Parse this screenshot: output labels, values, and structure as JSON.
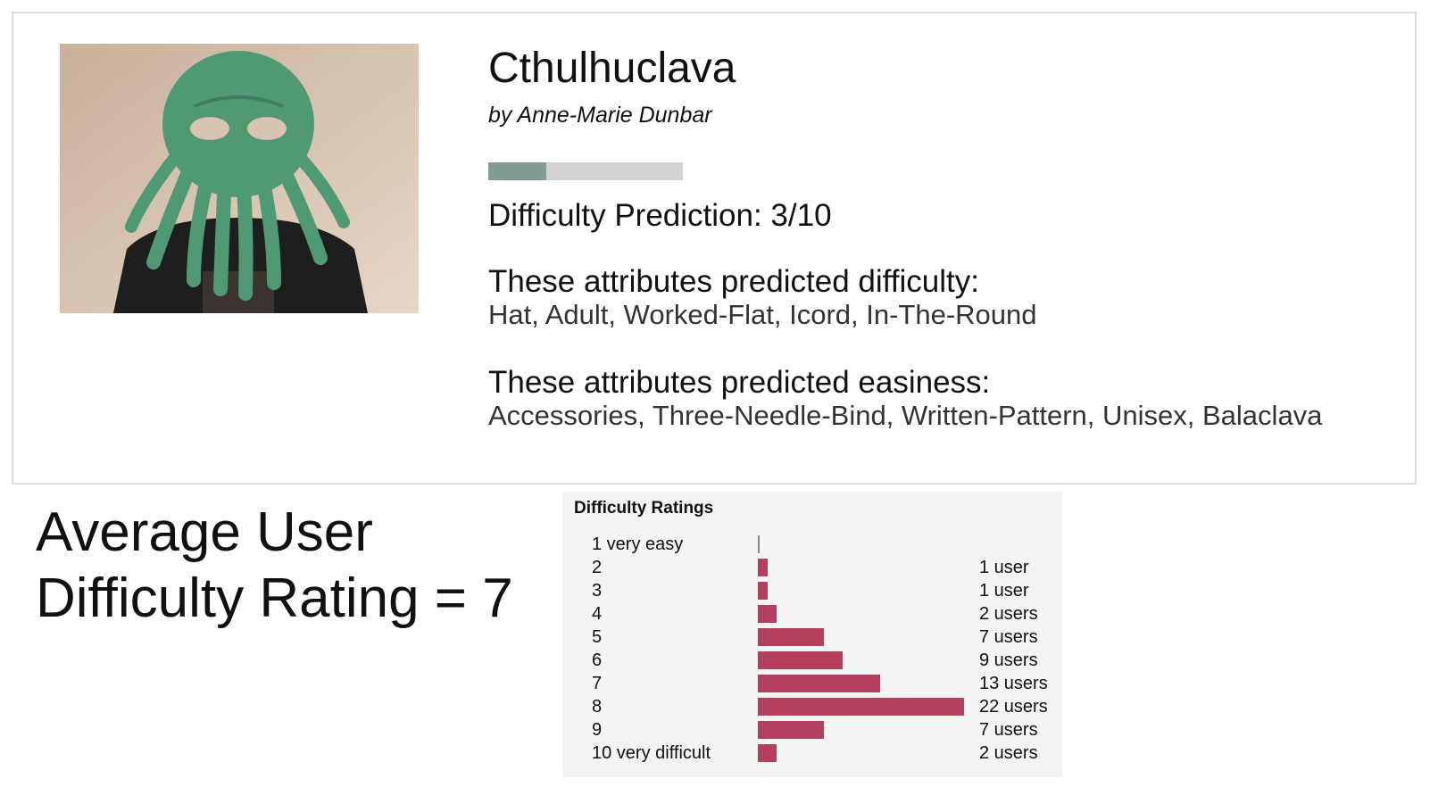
{
  "pattern": {
    "title": "Cthulhuclava",
    "author": "by Anne-Marie Dunbar",
    "photo_icon": "pattern-photo-icon",
    "prediction_text": "Difficulty Prediction: 3/10",
    "prediction_score": 3,
    "prediction_max": 10,
    "difficulty_heading": "These attributes predicted difficulty:",
    "difficulty_attributes": "Hat, Adult, Worked-Flat, Icord, In-The-Round",
    "easiness_heading": "These attributes predicted easiness:",
    "easiness_attributes": "Accessories, Three-Needle-Bind, Written-Pattern, Unisex, Balaclava"
  },
  "summary": {
    "line1": "Average User",
    "line2": "Difficulty Rating = 7"
  },
  "colors": {
    "prediction_fill": "#7f9b93",
    "prediction_track": "#d2d2d2",
    "rating_bar": "#b5405d"
  },
  "chart_data": {
    "type": "bar",
    "title": "Difficulty Ratings",
    "categories": [
      "1 very easy",
      "2",
      "3",
      "4",
      "5",
      "6",
      "7",
      "8",
      "9",
      "10 very difficult"
    ],
    "values": [
      0,
      1,
      1,
      2,
      7,
      9,
      13,
      22,
      7,
      2
    ],
    "value_labels": [
      "",
      "1 user",
      "1 user",
      "2 users",
      "7 users",
      "9 users",
      "13 users",
      "22 users",
      "7 users",
      "2 users"
    ],
    "xlim": [
      0,
      22
    ]
  }
}
